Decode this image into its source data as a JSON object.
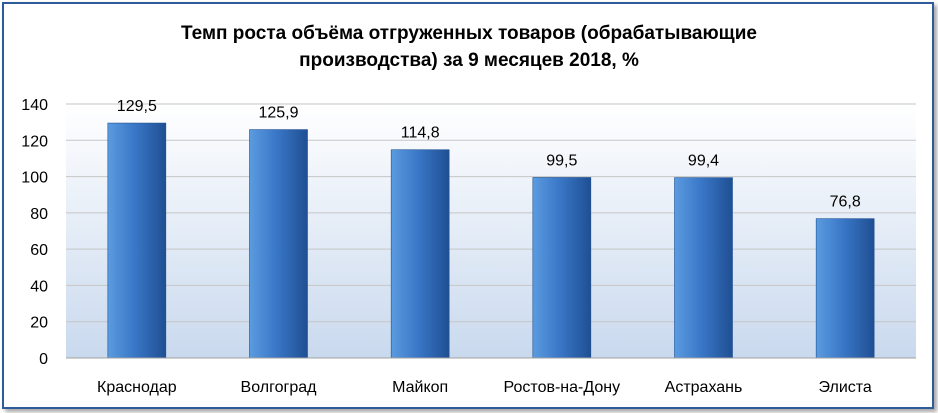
{
  "chart_data": {
    "type": "bar",
    "title_line1": "Темп роста объёма отгруженных товаров (обрабатывающие",
    "title_line2": "производства) за 9 месяцев 2018, %",
    "categories": [
      "Краснодар",
      "Волгоград",
      "Майкоп",
      "Ростов-на-Дону",
      "Астрахань",
      "Элиста"
    ],
    "values": [
      129.5,
      125.9,
      114.8,
      99.5,
      99.4,
      76.8
    ],
    "value_labels": [
      "129,5",
      "125,9",
      "114,8",
      "99,5",
      "99,4",
      "76,8"
    ],
    "ylim": [
      0,
      140
    ],
    "yticks": [
      0,
      20,
      40,
      60,
      80,
      100,
      120,
      140
    ],
    "grid": true,
    "legend": "none",
    "colors": {
      "bar_light": "#5b9bdf",
      "bar_mid": "#3a78c8",
      "bar_dark": "#1f4f93",
      "plot_bg_top": "#ffffff",
      "plot_bg_bottom": "#c9d9ee",
      "gridline": "#c6c6c6",
      "frame": "#2e5c9a"
    }
  }
}
